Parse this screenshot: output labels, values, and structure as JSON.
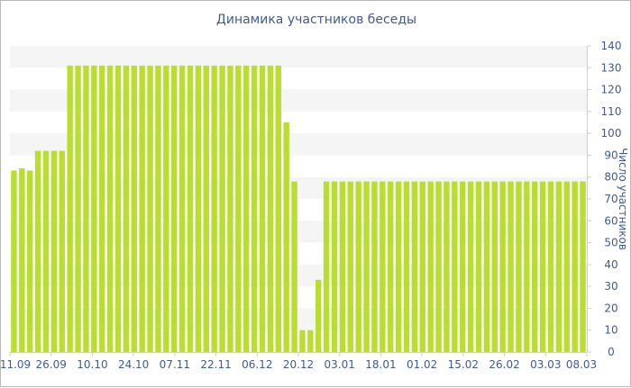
{
  "chart_data": {
    "type": "bar",
    "title": "Динамика участников беседы",
    "xlabel": "",
    "ylabel": "Число участников",
    "ylim": [
      0,
      140
    ],
    "y_ticks": [
      0,
      10,
      20,
      30,
      40,
      50,
      60,
      70,
      80,
      90,
      100,
      110,
      120,
      130,
      140
    ],
    "y_axis_position": "right",
    "x_tick_labels": [
      "11.09",
      "26.09",
      "10.10",
      "24.10",
      "07.11",
      "22.11",
      "06.12",
      "20.12",
      "03.01",
      "18.01",
      "01.02",
      "15.02",
      "26.02",
      "03.03",
      "08.03"
    ],
    "bar_color": "#b9de2f",
    "grid_band_color": "#f5f5f5",
    "values": [
      83,
      84,
      83,
      92,
      92,
      92,
      92,
      131,
      131,
      131,
      131,
      131,
      131,
      131,
      131,
      131,
      131,
      131,
      131,
      131,
      131,
      131,
      131,
      131,
      131,
      131,
      131,
      131,
      131,
      131,
      131,
      131,
      131,
      131,
      105,
      78,
      10,
      10,
      33,
      78,
      78,
      78,
      78,
      78,
      78,
      78,
      78,
      78,
      78,
      78,
      78,
      78,
      78,
      78,
      78,
      78,
      78,
      78,
      78,
      78,
      78,
      78,
      78,
      78,
      78,
      78,
      78,
      78,
      78,
      78,
      78,
      78
    ]
  }
}
